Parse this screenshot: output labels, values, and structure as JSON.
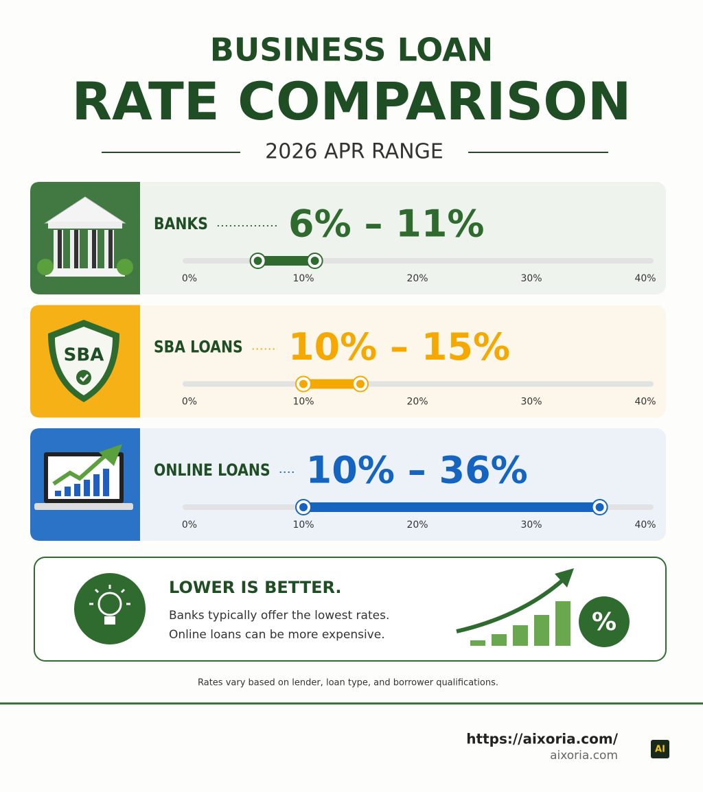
{
  "header": {
    "title_line1": "BUSINESS LOAN",
    "title_line2": "RATE COMPARISON",
    "subtitle": "2026 APR RANGE"
  },
  "axis": {
    "xlim": [
      0,
      40
    ],
    "xticks": [
      {
        "value": 0,
        "label": "0%"
      },
      {
        "value": 10,
        "label": "10%"
      },
      {
        "value": 20,
        "label": "20%"
      },
      {
        "value": 30,
        "label": "30%"
      },
      {
        "value": 40,
        "label": "40%"
      }
    ]
  },
  "rows": [
    {
      "label": "BANKS",
      "range_label": "6% – 11%",
      "low": 6,
      "high": 11,
      "color": "#2f6b2f"
    },
    {
      "label": "SBA LOANS",
      "range_label": "10% – 15%",
      "low": 10,
      "high": 15,
      "color": "#f5a800",
      "icon_text": "SBA"
    },
    {
      "label": "ONLINE LOANS",
      "range_label": "10% – 36%",
      "low": 10,
      "high": 36,
      "color": "#1565c0"
    }
  ],
  "callout": {
    "title": "LOWER IS BETTER.",
    "lines": [
      "Banks typically offer the lowest rates.",
      "Online loans can be more expensive."
    ],
    "icon_text": "%"
  },
  "footnote": "Rates vary based on lender, loan type, and borrower qualifications.",
  "footer": {
    "url": "https://aixoria.com/",
    "domain": "aixoria.com",
    "badge": "AI"
  }
}
